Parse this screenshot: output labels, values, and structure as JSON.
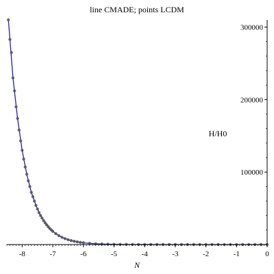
{
  "chart_data": {
    "type": "line",
    "title": "line CMADE; points LCDM",
    "xlabel": "N",
    "ylabel": "H/H0",
    "xlim": [
      -8.5,
      0
    ],
    "ylim": [
      0,
      310000
    ],
    "x_ticks": [
      -8,
      -7,
      -6,
      -5,
      -4,
      -3,
      -2,
      -1,
      0
    ],
    "x_tick_labels": [
      "-8",
      "-7",
      "-6",
      "-5",
      "-4",
      "-3",
      "-2",
      "-1",
      "0"
    ],
    "y_ticks": [
      100000,
      200000,
      300000
    ],
    "y_tick_labels": [
      "100000",
      "200000",
      "300000"
    ],
    "grid": false,
    "legend": "none",
    "series": [
      {
        "style": "line",
        "color": "#1a1acc",
        "x": [
          -8.45,
          -8.3,
          -8.15,
          -8.0,
          -7.85,
          -7.7,
          -7.55,
          -7.4,
          -7.25,
          -7.1,
          -6.95,
          -6.8,
          -6.65,
          -6.5,
          -6.35,
          -6.2,
          -6.05,
          -5.9,
          -5.75,
          -5.6,
          -5.45,
          -5.3,
          -5.15,
          -5.0,
          -4.5,
          -4.0,
          -3.5,
          -3.0,
          -2.5,
          -2.0,
          -1.5,
          -1.0,
          -0.5,
          0.0
        ],
        "y": [
          310000,
          230000,
          174000,
          130000,
          97000,
          72000,
          54000,
          40000,
          30000,
          22000,
          16500,
          12200,
          9000,
          6700,
          5000,
          3700,
          2700,
          2000,
          1500,
          1100,
          820,
          600,
          450,
          330,
          140,
          60,
          27,
          12,
          6,
          3.5,
          2.2,
          1.5,
          1.2,
          1.0
        ]
      },
      {
        "style": "points",
        "color": "#555555",
        "x": [
          -8.45,
          -8.4,
          -8.35,
          -8.3,
          -8.25,
          -8.2,
          -8.15,
          -8.1,
          -8.05,
          -8.0,
          -7.95,
          -7.9,
          -7.85,
          -7.8,
          -7.75,
          -7.7,
          -7.65,
          -7.6,
          -7.55,
          -7.5,
          -7.45,
          -7.4,
          -7.35,
          -7.3,
          -7.25,
          -7.2,
          -7.15,
          -7.1,
          -7.05,
          -7.0,
          -6.9,
          -6.8,
          -6.7,
          -6.6,
          -6.5,
          -6.4,
          -6.3,
          -6.2,
          -6.1,
          -6.0,
          -5.8,
          -5.6,
          -5.4,
          -5.2,
          -5.0,
          -4.8,
          -4.6,
          -4.4,
          -4.2,
          -4.0,
          -3.8,
          -3.6,
          -3.4,
          -3.2,
          -3.0,
          -2.8,
          -2.6,
          -2.4,
          -2.2,
          -2.0,
          -1.8,
          -1.6,
          -1.4,
          -1.2,
          -1.0,
          -0.8,
          -0.6,
          -0.4,
          -0.2,
          0.0
        ],
        "y": [
          310000,
          283000,
          265000,
          230000,
          212000,
          190000,
          174000,
          158000,
          143000,
          130000,
          118000,
          107000,
          97000,
          88000,
          80000,
          72000,
          66000,
          60000,
          54000,
          49000,
          44000,
          40000,
          36500,
          33000,
          30000,
          27200,
          24600,
          22300,
          20200,
          18300,
          15000,
          12200,
          10000,
          8200,
          6700,
          5500,
          4500,
          3700,
          3000,
          2500,
          1650,
          1100,
          740,
          500,
          330,
          220,
          150,
          100,
          70,
          46,
          32,
          22,
          15,
          10,
          7,
          5,
          3.6,
          2.6,
          2.0,
          1.6,
          1.4,
          1.3,
          1.2,
          1.1,
          1.05,
          1.03,
          1.02,
          1.01,
          1.0,
          1.0
        ]
      }
    ]
  }
}
